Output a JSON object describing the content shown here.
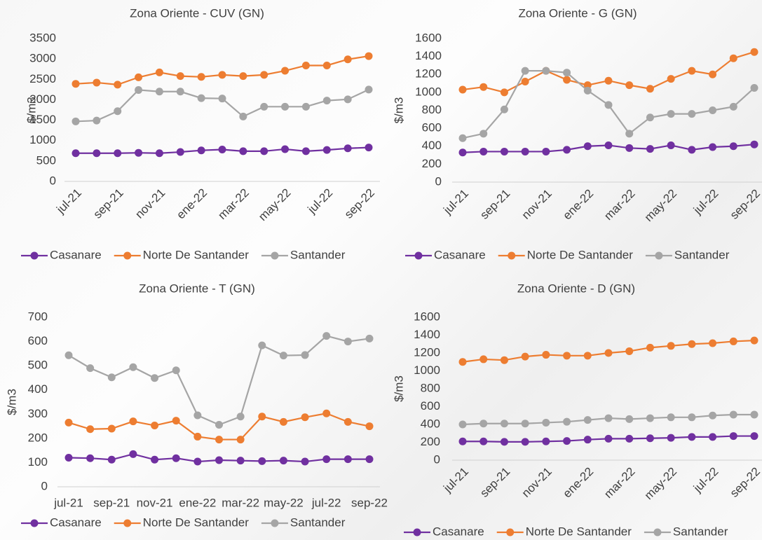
{
  "chart_data": [
    {
      "type": "line",
      "title": "Zona Oriente - CUV (GN)",
      "y_label": "$/m3",
      "categories": [
        "jul-21",
        null,
        "sep-21",
        null,
        "nov-21",
        null,
        "ene-22",
        null,
        "mar-22",
        null,
        "may-22",
        null,
        "jul-22",
        null,
        "sep-22"
      ],
      "series": [
        {
          "name": "Casanare",
          "color": "#7030a0",
          "values": [
            690,
            690,
            690,
            700,
            690,
            720,
            760,
            780,
            740,
            740,
            790,
            740,
            770,
            810,
            830
          ]
        },
        {
          "name": "Norte De Santander",
          "color": "#ed7d31",
          "values": [
            2390,
            2420,
            2370,
            2550,
            2670,
            2580,
            2560,
            2610,
            2580,
            2610,
            2710,
            2840,
            2840,
            2990,
            3070
          ]
        },
        {
          "name": "Santander",
          "color": "#a5a5a5",
          "values": [
            1470,
            1490,
            1720,
            2240,
            2200,
            2200,
            2040,
            2030,
            1590,
            1830,
            1830,
            1830,
            1980,
            2010,
            2250
          ]
        }
      ],
      "ylim": [
        0,
        3500
      ],
      "yticks": [
        0,
        500,
        1000,
        1500,
        2000,
        2500,
        3000,
        3500
      ],
      "legend": "bottom"
    },
    {
      "type": "line",
      "title": "Zona Oriente - G (GN)",
      "y_label": "$/m3",
      "categories": [
        "jul-21",
        null,
        "sep-21",
        null,
        "nov-21",
        null,
        "ene-22",
        null,
        "mar-22",
        null,
        "may-22",
        null,
        "jul-22",
        null,
        "sep-22"
      ],
      "series": [
        {
          "name": "Casanare",
          "color": "#7030a0",
          "values": [
            330,
            340,
            340,
            340,
            340,
            360,
            400,
            410,
            380,
            370,
            410,
            360,
            390,
            400,
            420
          ]
        },
        {
          "name": "Norte De Santander",
          "color": "#ed7d31",
          "values": [
            1030,
            1060,
            1000,
            1120,
            1240,
            1140,
            1080,
            1130,
            1080,
            1040,
            1150,
            1240,
            1200,
            1380,
            1450
          ]
        },
        {
          "name": "Santander",
          "color": "#a5a5a5",
          "values": [
            490,
            540,
            810,
            1240,
            1240,
            1220,
            1020,
            860,
            540,
            720,
            760,
            760,
            800,
            840,
            1050
          ]
        }
      ],
      "ylim": [
        0,
        1600
      ],
      "yticks": [
        0,
        200,
        400,
        600,
        800,
        1000,
        1200,
        1400,
        1600
      ],
      "legend": "bottom"
    },
    {
      "type": "line",
      "title": "Zona Oriente - T (GN)",
      "y_label": "$/m3",
      "categories": [
        "jul-21",
        null,
        "sep-21",
        null,
        "nov-21",
        null,
        "ene-22",
        null,
        "mar-22",
        null,
        "may-22",
        null,
        "jul-22",
        null,
        "sep-22"
      ],
      "series": [
        {
          "name": "Casanare",
          "color": "#7030a0",
          "values": [
            120,
            118,
            112,
            135,
            112,
            118,
            104,
            110,
            108,
            106,
            108,
            104,
            114,
            114,
            114
          ]
        },
        {
          "name": "Norte De Santander",
          "color": "#ed7d31",
          "values": [
            265,
            238,
            240,
            270,
            253,
            273,
            207,
            195,
            195,
            290,
            268,
            287,
            303,
            268,
            250
          ]
        },
        {
          "name": "Santander",
          "color": "#a5a5a5",
          "values": [
            543,
            490,
            452,
            494,
            449,
            481,
            295,
            256,
            290,
            584,
            542,
            544,
            623,
            600,
            612
          ]
        }
      ],
      "ylim": [
        0,
        700
      ],
      "yticks": [
        0,
        100,
        200,
        300,
        400,
        500,
        600,
        700
      ],
      "legend": "bottom"
    },
    {
      "type": "line",
      "title": "Zona Oriente - D (GN)",
      "y_label": "$/m3",
      "categories": [
        "jul-21",
        null,
        "sep-21",
        null,
        "nov-21",
        null,
        "ene-22",
        null,
        "mar-22",
        null,
        "may-22",
        null,
        "jul-22",
        null,
        "sep-22"
      ],
      "series": [
        {
          "name": "Casanare",
          "color": "#7030a0",
          "values": [
            210,
            210,
            205,
            205,
            210,
            215,
            230,
            240,
            240,
            245,
            250,
            260,
            260,
            270,
            270
          ]
        },
        {
          "name": "Norte De Santander",
          "color": "#ed7d31",
          "values": [
            1100,
            1130,
            1120,
            1160,
            1180,
            1170,
            1170,
            1200,
            1220,
            1260,
            1280,
            1300,
            1310,
            1330,
            1340
          ]
        },
        {
          "name": "Santander",
          "color": "#a5a5a5",
          "values": [
            400,
            410,
            410,
            410,
            420,
            430,
            450,
            470,
            460,
            470,
            480,
            480,
            500,
            510,
            510
          ]
        }
      ],
      "ylim": [
        0,
        1600
      ],
      "yticks": [
        0,
        200,
        400,
        600,
        800,
        1000,
        1200,
        1400,
        1600
      ],
      "legend": "bottom"
    }
  ]
}
